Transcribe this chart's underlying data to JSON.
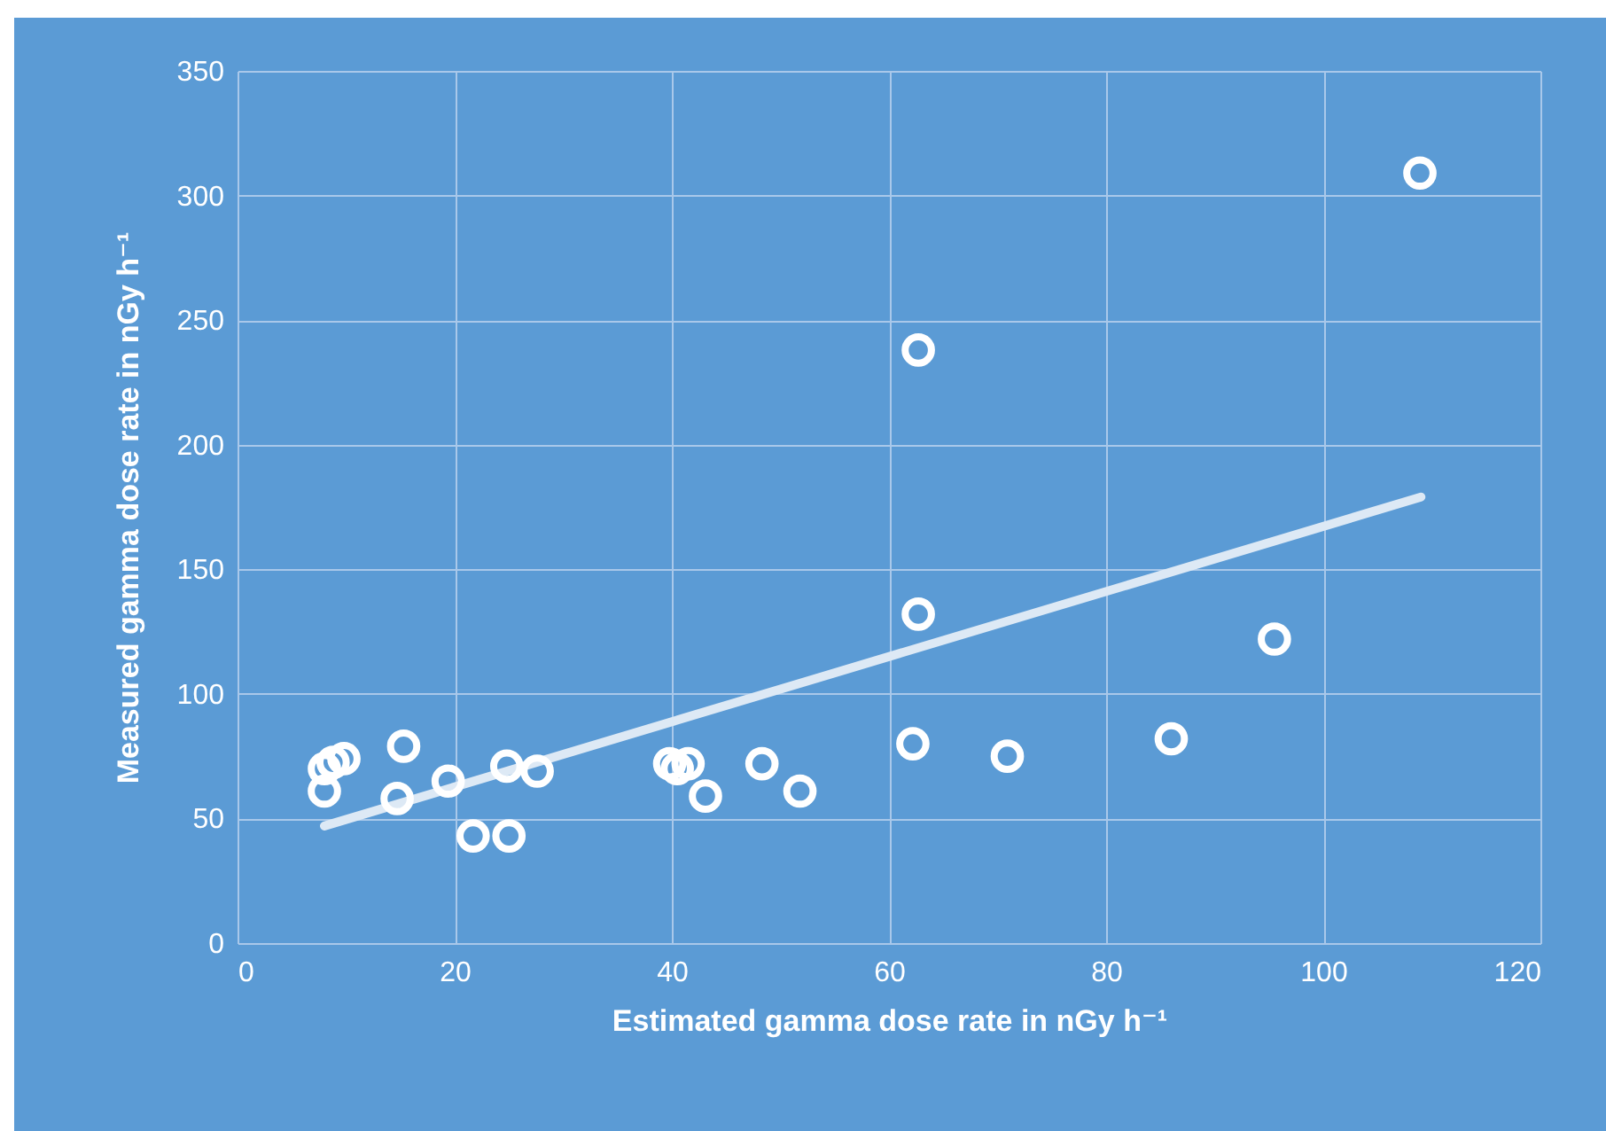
{
  "chart_data": {
    "type": "scatter",
    "xlabel": "Estimated gamma dose rate in nGy h⁻¹",
    "ylabel": "Measured  gamma dose  rate in nGy h⁻¹",
    "xlim": [
      0,
      120
    ],
    "xticks": [
      0,
      20,
      40,
      60,
      80,
      100,
      120
    ],
    "ylim": [
      0,
      350
    ],
    "yticks": [
      0,
      50,
      100,
      150,
      200,
      250,
      300,
      350
    ],
    "grid": true,
    "series": [
      {
        "marker": "circle",
        "color": "#ffffff",
        "x": [
          8.0,
          8.0,
          8.8,
          9.8,
          15.3,
          14.7,
          19.4,
          24.8,
          27.6,
          21.7,
          25.0,
          39.8,
          40.5,
          41.5,
          43.1,
          48.3,
          51.8,
          62.2,
          62.7,
          62.7,
          70.9,
          86.0,
          95.5,
          108.9
        ],
        "values": [
          61,
          70,
          72.5,
          74,
          79,
          58,
          65,
          71,
          69,
          43,
          43,
          72,
          70,
          72,
          59,
          72,
          61,
          80,
          132,
          238,
          75,
          82,
          122,
          309
        ]
      },
      {
        "type": "line",
        "color": "#dde9f5",
        "x": [
          8,
          109
        ],
        "values": [
          47,
          179
        ]
      }
    ]
  }
}
